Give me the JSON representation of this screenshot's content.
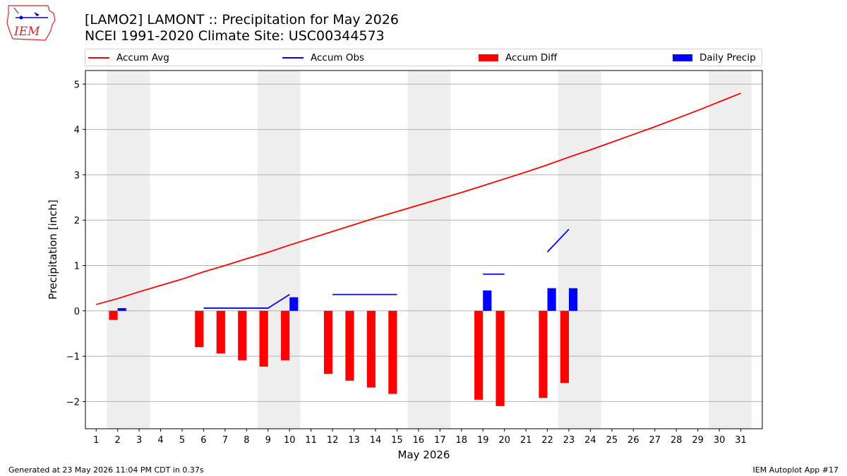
{
  "header": {
    "title_line1": "[LAMO2] LAMONT :: Precipitation for May 2026",
    "title_line2": "NCEI 1991-2020 Climate Site: USC00344573",
    "logo_text": "IEM"
  },
  "footer": {
    "left": "Generated at 23 May 2026 11:04 PM CDT in 0.37s",
    "right": "IEM Autoplot App #17"
  },
  "colors": {
    "avg": "#ff0000",
    "obs": "#0000ff",
    "diff": "#ff0000",
    "daily": "#0000ff",
    "weekend": "#eeeeee",
    "grid": "#b0b0b0"
  },
  "chart_data": {
    "type": "bar",
    "title": "[LAMO2] LAMONT :: Precipitation for May 2026",
    "subtitle": "NCEI 1991-2020 Climate Site: USC00344573",
    "xlabel": "May 2026",
    "ylabel": "Precipitation [inch]",
    "xlim": [
      0.5,
      32
    ],
    "ylim": [
      -2.6,
      5.3
    ],
    "yticks": [
      -2,
      -1,
      0,
      1,
      2,
      3,
      4,
      5
    ],
    "ytick_labels": [
      "−2",
      "−1",
      "0",
      "1",
      "2",
      "3",
      "4",
      "5"
    ],
    "xticks": [
      1,
      2,
      3,
      4,
      5,
      6,
      7,
      8,
      9,
      10,
      11,
      12,
      13,
      14,
      15,
      16,
      17,
      18,
      19,
      20,
      21,
      22,
      23,
      24,
      25,
      26,
      27,
      28,
      29,
      30,
      31
    ],
    "grid": "horizontal",
    "legend_placement": "top",
    "legend": [
      "Accum Avg",
      "Accum Obs",
      "Accum Diff",
      "Daily Precip"
    ],
    "weekend_spans": [
      [
        1.5,
        3.5
      ],
      [
        8.5,
        10.5
      ],
      [
        15.5,
        17.5
      ],
      [
        22.5,
        24.5
      ],
      [
        29.5,
        31.5
      ]
    ],
    "accum_avg": {
      "name": "Accum Avg",
      "x": [
        1,
        2,
        3,
        4,
        5,
        6,
        7,
        8,
        9,
        10,
        11,
        12,
        13,
        14,
        15,
        16,
        17,
        18,
        19,
        20,
        21,
        22,
        23,
        24,
        25,
        26,
        27,
        28,
        29,
        30,
        31
      ],
      "y": [
        0.14,
        0.27,
        0.42,
        0.56,
        0.7,
        0.86,
        1.0,
        1.15,
        1.29,
        1.45,
        1.6,
        1.75,
        1.9,
        2.05,
        2.19,
        2.33,
        2.47,
        2.61,
        2.76,
        2.91,
        3.06,
        3.22,
        3.39,
        3.55,
        3.72,
        3.89,
        4.06,
        4.24,
        4.42,
        4.61,
        4.8
      ]
    },
    "accum_obs_segments": [
      {
        "name": "Accum Obs",
        "x": [
          6,
          9,
          10
        ],
        "y": [
          0.06,
          0.06,
          0.36
        ]
      },
      {
        "x": [
          12,
          15
        ],
        "y": [
          0.36,
          0.36
        ]
      },
      {
        "x": [
          19,
          20
        ],
        "y": [
          0.81,
          0.81
        ]
      },
      {
        "x": [
          22,
          23
        ],
        "y": [
          1.3,
          1.8
        ]
      }
    ],
    "accum_diff": {
      "name": "Accum Diff",
      "x": [
        2,
        6,
        7,
        8,
        9,
        10,
        12,
        13,
        14,
        15,
        19,
        20,
        22,
        23
      ],
      "y": [
        -0.2,
        -0.8,
        -0.94,
        -1.09,
        -1.23,
        -1.09,
        -1.39,
        -1.54,
        -1.69,
        -1.83,
        -1.96,
        -2.1,
        -1.92,
        -1.59
      ]
    },
    "daily_precip": {
      "name": "Daily Precip",
      "x": [
        2,
        10,
        19,
        22,
        23
      ],
      "y": [
        0.06,
        0.3,
        0.45,
        0.5,
        0.5
      ]
    }
  }
}
